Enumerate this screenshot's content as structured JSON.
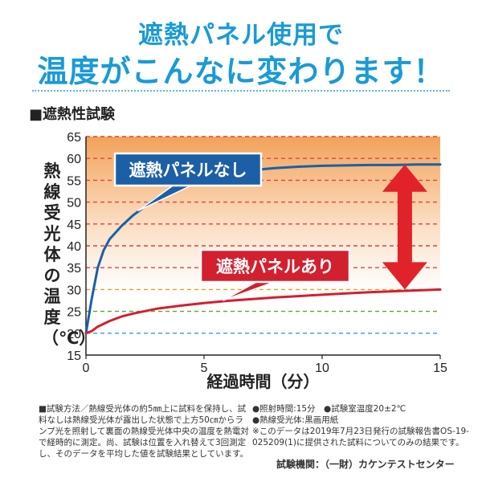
{
  "header": {
    "line1": "遮熱パネル使用で",
    "line2": "温度がこんなに変わります！"
  },
  "section_title": "■遮熱性試験",
  "chart_data": {
    "type": "line",
    "xlabel": "経過時間（分）",
    "ylabel": "熱線受光体の温度（℃）",
    "xlim": [
      0,
      15
    ],
    "ylim": [
      15,
      65
    ],
    "xticks": [
      0,
      5,
      10,
      15
    ],
    "yticks": [
      15,
      20,
      25,
      30,
      35,
      40,
      45,
      50,
      55,
      60,
      65
    ],
    "grid": "dashed horizontal",
    "background": "orange gradient above 30°C",
    "series": [
      {
        "name": "遮熱パネルなし",
        "color": "#1c5fa6",
        "label_bg": "#1c5fa6",
        "x": [
          0,
          0.25,
          0.5,
          0.75,
          1,
          1.5,
          2,
          2.5,
          3,
          4,
          5,
          6,
          7,
          8,
          9,
          10,
          11,
          12,
          13,
          14,
          15
        ],
        "y": [
          20,
          28,
          35,
          39,
          41.5,
          44.5,
          47,
          49,
          51,
          53.5,
          55.3,
          56.5,
          57.3,
          57.8,
          58.1,
          58.3,
          58.4,
          58.5,
          58.5,
          58.6,
          58.6
        ]
      },
      {
        "name": "遮熱パネルあり",
        "color": "#d2202f",
        "label_bg": "#d2202f",
        "x": [
          0,
          0.25,
          0.5,
          1,
          1.5,
          2,
          3,
          4,
          5,
          6,
          7,
          8,
          9,
          10,
          11,
          12,
          13,
          14,
          15
        ],
        "y": [
          20,
          20.5,
          21.5,
          22.8,
          23.8,
          24.5,
          25.6,
          26.3,
          26.9,
          27.4,
          27.8,
          28.2,
          28.5,
          28.8,
          29.1,
          29.4,
          29.6,
          29.8,
          30
        ]
      }
    ],
    "annotation": {
      "type": "double-arrow",
      "x": 13.5,
      "from": 58.6,
      "to": 30,
      "color": "#e2222a"
    }
  },
  "notes_left": "■試験方法／熱線受光体の約5㎜上に試料を保持し、試料なしは熱線受光体が露出した状態で上方50㎝からランプ光を照射して裏面の熱線受光体中央の温度を熱電対で経時的に測定。尚、試験は位置を入れ替えて3回測定し、そのデータを平均した値を試験結果としています。",
  "notes_right": [
    "●照射時間:15分　●試験室温度20±2℃",
    "●熱線受光体:黒画用紙",
    "※このデータは2019年7月23日発行の試験報告書OS-19-025209(1)に提供された試料についてのみの結果です。"
  ],
  "org": "試験機関：（一財）カケンテストセンター"
}
